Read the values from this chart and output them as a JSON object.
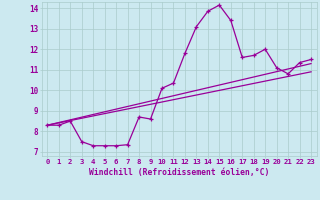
{
  "xlabel": "Windchill (Refroidissement éolien,°C)",
  "background_color": "#cce9f0",
  "line_color": "#990099",
  "grid_color": "#aacccc",
  "xlim": [
    -0.5,
    23.5
  ],
  "ylim": [
    6.8,
    14.3
  ],
  "xticks": [
    0,
    1,
    2,
    3,
    4,
    5,
    6,
    7,
    8,
    9,
    10,
    11,
    12,
    13,
    14,
    15,
    16,
    17,
    18,
    19,
    20,
    21,
    22,
    23
  ],
  "yticks": [
    7,
    8,
    9,
    10,
    11,
    12,
    13,
    14
  ],
  "curve1_x": [
    0,
    1,
    2,
    3,
    4,
    5,
    6,
    7,
    8,
    9,
    10,
    11,
    12,
    13,
    14,
    15,
    16,
    17,
    18,
    19,
    20,
    21,
    22,
    23
  ],
  "curve1_y": [
    8.3,
    8.3,
    8.5,
    7.5,
    7.3,
    7.3,
    7.3,
    7.35,
    8.7,
    8.6,
    10.1,
    10.35,
    11.8,
    13.1,
    13.85,
    14.15,
    13.4,
    11.6,
    11.7,
    12.0,
    11.1,
    10.8,
    11.35,
    11.5
  ],
  "curve2_x": [
    0,
    23
  ],
  "curve2_y": [
    8.3,
    11.3
  ],
  "curve3_x": [
    0,
    23
  ],
  "curve3_y": [
    8.3,
    10.9
  ]
}
